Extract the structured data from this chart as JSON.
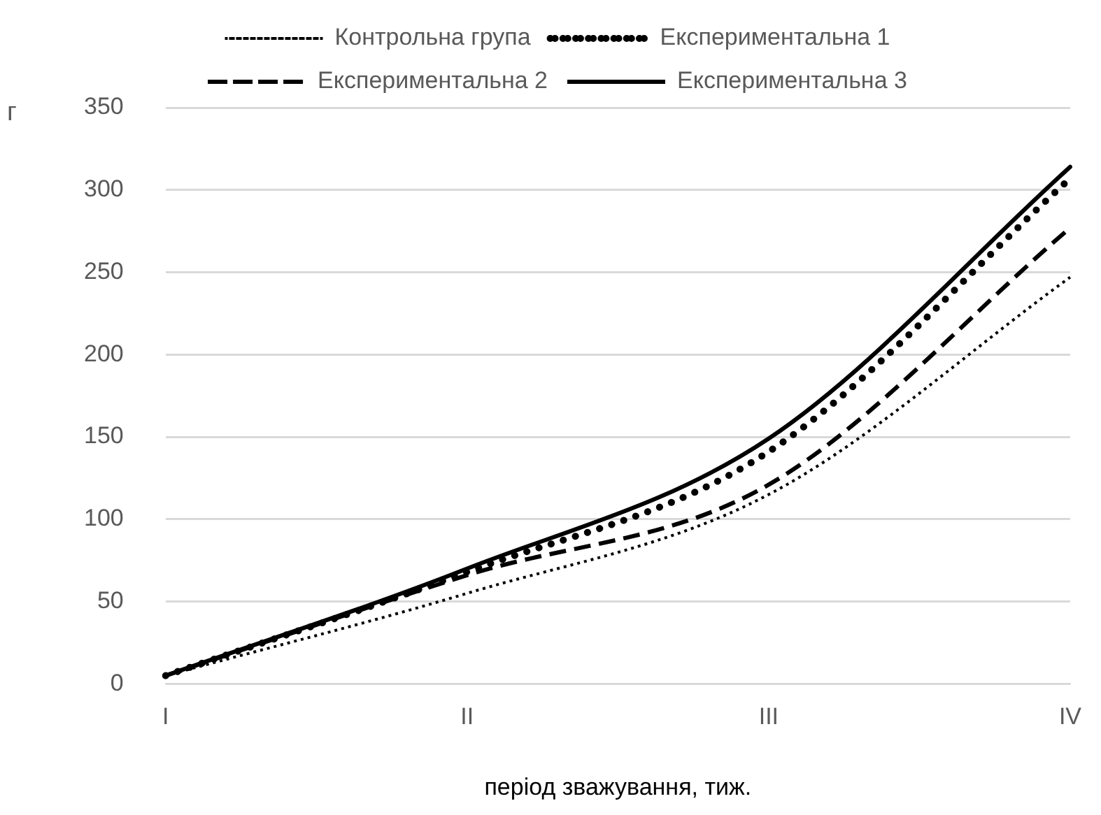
{
  "chart_data": {
    "type": "line",
    "xlabel": "період зважування, тиж.",
    "ylabel": "г",
    "categories": [
      "I",
      "II",
      "III",
      "IV"
    ],
    "series": [
      {
        "name": "Контрольна група",
        "color": "#000000",
        "values": [
          5,
          55,
          115,
          247
        ],
        "line_style": "dotted"
      },
      {
        "name": "Експериментальна 1",
        "color": "#000000",
        "values": [
          5,
          68,
          141,
          307
        ],
        "line_style": "round-dotted"
      },
      {
        "name": "Експериментальна 2",
        "color": "#000000",
        "values": [
          5,
          66,
          121,
          277
        ],
        "line_style": "dashed"
      },
      {
        "name": "Експериментальна 3",
        "color": "#000000",
        "values": [
          5,
          70,
          149,
          314
        ],
        "line_style": "solid"
      }
    ],
    "ylim": [
      0,
      350
    ],
    "yticks": [
      0,
      50,
      100,
      150,
      200,
      250,
      300,
      350
    ],
    "grid": "y",
    "legend": "top",
    "marker": "none"
  }
}
